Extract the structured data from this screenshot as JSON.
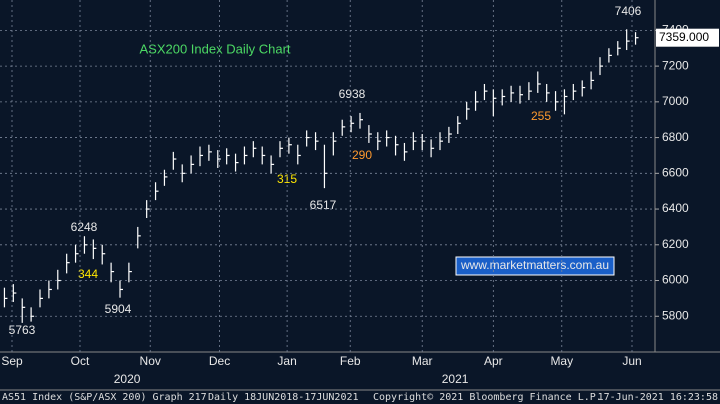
{
  "chart_data": {
    "type": "hlc",
    "title": "ASX200 Index Daily Chart",
    "categories": [
      null,
      null,
      null,
      null,
      null,
      null,
      null,
      null,
      null,
      null,
      null,
      null,
      null,
      null,
      null,
      null,
      null,
      null,
      null,
      null,
      null,
      null,
      null,
      null,
      null,
      null,
      null,
      null,
      null,
      null,
      null,
      null,
      null,
      null,
      null,
      null,
      null,
      null,
      null,
      null,
      null,
      null,
      null,
      null,
      null,
      null,
      null,
      null,
      null,
      null,
      null,
      null,
      null,
      null,
      null,
      null,
      null,
      null,
      null,
      null,
      null,
      null,
      null,
      null,
      null,
      null,
      null,
      null,
      null,
      null,
      null,
      null
    ],
    "close": [
      5900,
      5930,
      5850,
      5800,
      5900,
      5950,
      6000,
      6100,
      6150,
      6200,
      6180,
      6150,
      6050,
      5950,
      6050,
      6250,
      6400,
      6500,
      6580,
      6680,
      6600,
      6650,
      6700,
      6720,
      6680,
      6700,
      6660,
      6700,
      6740,
      6700,
      6650,
      6740,
      6760,
      6700,
      6800,
      6780,
      6600,
      6780,
      6860,
      6880,
      6900,
      6820,
      6780,
      6800,
      6760,
      6720,
      6780,
      6780,
      6740,
      6780,
      6820,
      6880,
      6960,
      7000,
      7060,
      7020,
      7030,
      7050,
      7040,
      7060,
      7100,
      7050,
      7000,
      7030,
      7060,
      7080,
      7120,
      7200,
      7260,
      7300,
      7340,
      7359
    ],
    "high": [
      5960,
      5980,
      5900,
      5850,
      5950,
      6000,
      6060,
      6150,
      6200,
      6248,
      6230,
      6200,
      6100,
      6000,
      6100,
      6300,
      6450,
      6550,
      6620,
      6720,
      6650,
      6700,
      6750,
      6760,
      6730,
      6740,
      6710,
      6750,
      6780,
      6750,
      6700,
      6780,
      6800,
      6760,
      6840,
      6830,
      6760,
      6830,
      6900,
      6920,
      6938,
      6870,
      6830,
      6840,
      6810,
      6770,
      6830,
      6820,
      6790,
      6830,
      6860,
      6920,
      7000,
      7060,
      7100,
      7070,
      7070,
      7090,
      7090,
      7110,
      7170,
      7100,
      7060,
      7070,
      7100,
      7120,
      7170,
      7250,
      7300,
      7340,
      7406,
      7390
    ],
    "low": [
      5850,
      5880,
      5763,
      5770,
      5850,
      5900,
      5950,
      6040,
      6100,
      6150,
      6120,
      6090,
      5990,
      5904,
      5990,
      6180,
      6350,
      6450,
      6530,
      6620,
      6550,
      6600,
      6640,
      6670,
      6630,
      6650,
      6610,
      6650,
      6690,
      6650,
      6600,
      6690,
      6710,
      6650,
      6750,
      6730,
      6517,
      6700,
      6810,
      6830,
      6850,
      6770,
      6730,
      6750,
      6700,
      6670,
      6730,
      6730,
      6690,
      6730,
      6770,
      6820,
      6900,
      6950,
      7010,
      6920,
      6980,
      7000,
      6990,
      7010,
      7050,
      7000,
      6950,
      6930,
      7010,
      7030,
      7070,
      7150,
      7220,
      7260,
      7290,
      7320
    ],
    "last_label": "7359.000",
    "ylim": [
      5600,
      7570
    ],
    "yticks": [
      5800,
      6000,
      6200,
      6400,
      6600,
      6800,
      7000,
      7200,
      7400
    ],
    "xticks": [
      {
        "value": 0.85,
        "label": "Sep"
      },
      {
        "value": 8.5,
        "label": "Oct"
      },
      {
        "value": 16.4,
        "label": "Nov"
      },
      {
        "value": 24.2,
        "label": "Dec"
      },
      {
        "value": 31.8,
        "label": "Jan"
      },
      {
        "value": 38.9,
        "label": "Feb"
      },
      {
        "value": 47,
        "label": "Mar"
      },
      {
        "value": 55,
        "label": "Apr"
      },
      {
        "value": 62.7,
        "label": "May"
      },
      {
        "value": 70.6,
        "label": "Jun"
      }
    ],
    "year_ticks": [
      {
        "value": 13.8,
        "label": "2020"
      },
      {
        "value": 50.7,
        "label": "2021"
      }
    ],
    "annotations": [
      "344",
      "315",
      "290",
      "255"
    ],
    "website": "www.marketmatters.com.au",
    "grid": true,
    "color": "#ffffff"
  },
  "footer": {
    "left": "AS51 Index (S&P/ASX 200) Graph 217",
    "range": "Daily 18JUN2018-17JUN2021",
    "copyright": "Copyright© 2021 Bloomberg Finance L.P.",
    "timestamp": "17-Jun-2021 16:23:58"
  }
}
